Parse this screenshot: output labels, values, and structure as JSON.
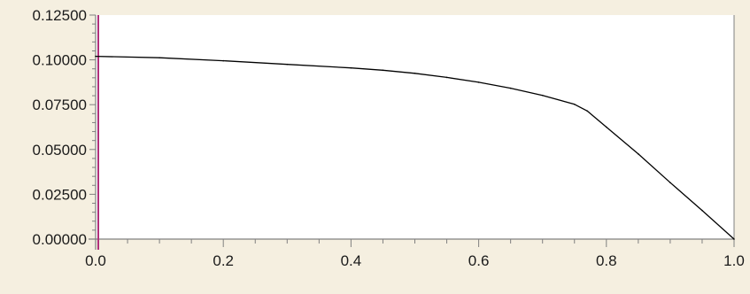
{
  "colors": {
    "background": "#f5efe0",
    "plot_background": "#ffffff",
    "axis": "#808080",
    "line": "#000000",
    "cursor": "#b0307a"
  },
  "chart_data": {
    "type": "line",
    "title": "",
    "xlabel": "",
    "ylabel": "",
    "xlim": [
      0.0,
      1.0
    ],
    "ylim": [
      0.0,
      0.125
    ],
    "x_ticks": [
      0.0,
      0.2,
      0.4,
      0.6,
      0.8,
      1.0
    ],
    "x_tick_labels": [
      "0.0",
      "0.2",
      "0.4",
      "0.6",
      "0.8",
      "1.0"
    ],
    "y_ticks": [
      0.0,
      0.025,
      0.05,
      0.075,
      0.1,
      0.125
    ],
    "y_tick_labels": [
      "0.00000",
      "0.02500",
      "0.05000",
      "0.07500",
      "0.10000",
      "0.12500"
    ],
    "grid": false,
    "legend": "none",
    "cursor_x": 0.0,
    "series": [
      {
        "x": [
          0.0,
          0.1,
          0.2,
          0.3,
          0.4,
          0.45,
          0.5,
          0.55,
          0.6,
          0.65,
          0.7,
          0.75,
          0.77,
          0.8,
          0.85,
          0.9,
          0.95,
          1.0
        ],
        "y": [
          0.102,
          0.1012,
          0.0995,
          0.0975,
          0.0955,
          0.0942,
          0.0925,
          0.0902,
          0.0875,
          0.0842,
          0.0802,
          0.0752,
          0.0715,
          0.0625,
          0.0475,
          0.0315,
          0.016,
          0.0
        ]
      }
    ]
  }
}
